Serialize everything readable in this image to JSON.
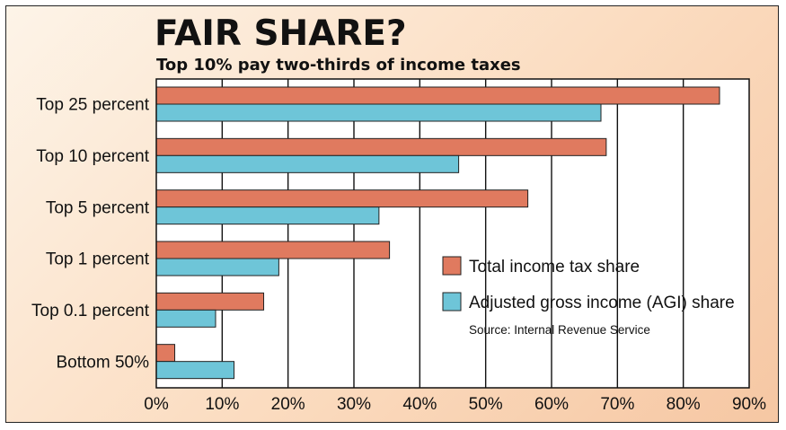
{
  "chart_data": {
    "type": "bar",
    "orientation": "horizontal",
    "title": "FAIR SHARE?",
    "subtitle": "Top 10% pay two-thirds of income taxes",
    "categories": [
      "Top 25 percent",
      "Top 10 percent",
      "Top 5 percent",
      "Top 1 percent",
      "Top 0.1 percent",
      "Bottom 50%"
    ],
    "series": [
      {
        "name": "Total income tax share",
        "color": "#e07a5f",
        "values": [
          85.5,
          68.3,
          56.4,
          35.4,
          16.3,
          2.8
        ]
      },
      {
        "name": "Adjusted gross income (AGI) share",
        "color": "#6ec5d8",
        "values": [
          67.5,
          45.9,
          33.8,
          18.6,
          9.0,
          11.8
        ]
      }
    ],
    "x_ticks": [
      "0%",
      "10%",
      "20%",
      "30%",
      "40%",
      "50%",
      "60%",
      "70%",
      "80%",
      "90%"
    ],
    "xlim": [
      0,
      90
    ],
    "grid": "vertical",
    "legend": "center-right",
    "source": "Source: Internal Revenue Service"
  }
}
